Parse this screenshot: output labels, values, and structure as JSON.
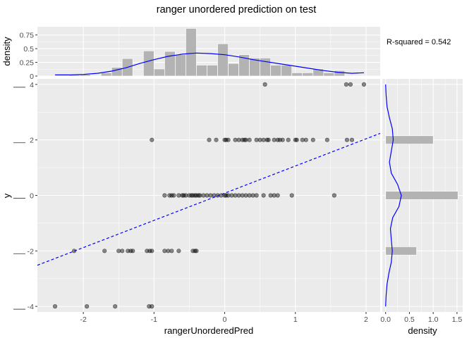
{
  "title": "ranger unordered prediction on test",
  "annotation": "R-squared =  0.542",
  "main": {
    "xlabel": "rangerUnorderedPred",
    "ylabel": "y",
    "xlim": [
      -2.65,
      2.2
    ],
    "ylim": [
      -4.2,
      4.2
    ],
    "x_ticks": [
      -2,
      -1,
      0,
      1,
      2
    ],
    "x_tick_labels": [
      "-2",
      "-1",
      "0",
      "1",
      "2"
    ],
    "y_ticks": [
      -4,
      -2,
      0,
      2,
      4
    ],
    "y_tick_labels": [
      "-4",
      "-2",
      "0",
      "2",
      "4"
    ]
  },
  "top": {
    "ylabel": "density",
    "ylim": [
      0,
      0.9
    ],
    "y_ticks": [
      0,
      0.25,
      0.5,
      0.75
    ],
    "y_tick_labels": [
      "0",
      "0.25",
      "0.5",
      "0.75"
    ]
  },
  "right": {
    "xlabel": "density",
    "xlim": [
      -0.07,
      1.62
    ],
    "x_ticks": [
      0,
      0.5,
      1,
      1.5
    ],
    "x_tick_labels": [
      "0.0",
      "0.5",
      "1.0",
      "1.5"
    ]
  },
  "colors": {
    "panel_bg": "#ebebeb",
    "grid_major": "#ffffff",
    "point": "#000000",
    "fit_line": "#0000ff",
    "density_line": "#0000ff",
    "bar_fill": "#b3b3b3",
    "bar_stroke": "#ffffff"
  },
  "chart_data": [
    {
      "type": "scatter",
      "name": "main",
      "x": [
        -2.4,
        -1.95,
        -1.55,
        -1.07,
        -1.03,
        -2.13,
        -1.7,
        -1.5,
        -1.45,
        -1.37,
        -1.33,
        -1.3,
        -1.1,
        -1.06,
        -1.03,
        -0.85,
        -0.8,
        -0.75,
        -0.65,
        -0.45,
        -0.42,
        -0.4,
        -0.85,
        -0.78,
        -0.75,
        -0.72,
        -0.65,
        -0.6,
        -0.58,
        -0.55,
        -0.5,
        -0.47,
        -0.45,
        -0.42,
        -0.4,
        -0.37,
        -0.35,
        -0.3,
        -0.25,
        -0.2,
        -0.15,
        -0.1,
        -0.05,
        0.0,
        0.02,
        0.05,
        0.1,
        0.15,
        0.2,
        0.25,
        0.3,
        0.35,
        0.4,
        0.45,
        0.55,
        0.65,
        0.7,
        0.75,
        0.95,
        1.55,
        -1.03,
        -0.22,
        -0.12,
        0.0,
        0.02,
        0.05,
        0.15,
        0.2,
        0.25,
        0.28,
        0.3,
        0.35,
        0.45,
        0.5,
        0.55,
        0.6,
        0.62,
        0.7,
        0.75,
        0.78,
        0.82,
        0.9,
        1.0,
        1.02,
        1.1,
        1.15,
        1.25,
        1.45,
        1.73,
        1.8,
        0.57,
        1.72,
        1.78,
        1.97
      ],
      "y": [
        -4,
        -4,
        -4,
        -4,
        -4,
        -2,
        -2,
        -2,
        -2,
        -2,
        -2,
        -2,
        -2,
        -2,
        -2,
        -2,
        -2,
        -2,
        -2,
        -2,
        -2,
        -2,
        0,
        0,
        0,
        0,
        0,
        0,
        0,
        0,
        0,
        0,
        0,
        0,
        0,
        0,
        0,
        0,
        0,
        0,
        0,
        0,
        0,
        0,
        0,
        0,
        0,
        0,
        0,
        0,
        0,
        0,
        0,
        0,
        0,
        0,
        0,
        0,
        0,
        0,
        2,
        2,
        2,
        2,
        2,
        2,
        2,
        2,
        2,
        2,
        2,
        2,
        2,
        2,
        2,
        2,
        2,
        2,
        2,
        2,
        2,
        2,
        2,
        2,
        2,
        2,
        2,
        2,
        2,
        2,
        4,
        4,
        4,
        4
      ],
      "fit_line": {
        "intercept": 0.08,
        "slope": 0.98
      }
    },
    {
      "type": "bar",
      "name": "x-marginal-histogram",
      "bin_edges": [
        -2.5,
        -2.35,
        -2.2,
        -2.05,
        -1.9,
        -1.75,
        -1.6,
        -1.45,
        -1.3,
        -1.15,
        -1.0,
        -0.85,
        -0.7,
        -0.55,
        -0.4,
        -0.25,
        -0.1,
        0.05,
        0.2,
        0.35,
        0.5,
        0.65,
        0.8,
        0.95,
        1.1,
        1.25,
        1.4,
        1.55,
        1.7,
        1.85,
        2.0
      ],
      "values": [
        0,
        0,
        0.03,
        0.03,
        0,
        0.06,
        0.16,
        0.32,
        0,
        0.46,
        0.13,
        0.45,
        0.39,
        0.87,
        0.2,
        0.2,
        0.59,
        0.23,
        0.39,
        0.33,
        0.33,
        0.2,
        0.2,
        0.06,
        0.06,
        0.13,
        0.06,
        0.1,
        0,
        0
      ],
      "density_x": [
        -2.4,
        -2.2,
        -2.0,
        -1.8,
        -1.6,
        -1.4,
        -1.2,
        -1.0,
        -0.8,
        -0.6,
        -0.4,
        -0.2,
        0.0,
        0.2,
        0.4,
        0.6,
        0.8,
        1.0,
        1.2,
        1.4,
        1.6,
        1.8,
        1.97
      ],
      "density_y": [
        0.02,
        0.02,
        0.03,
        0.05,
        0.09,
        0.15,
        0.23,
        0.3,
        0.36,
        0.4,
        0.42,
        0.41,
        0.39,
        0.35,
        0.3,
        0.26,
        0.22,
        0.18,
        0.14,
        0.1,
        0.07,
        0.05,
        0.06
      ]
    },
    {
      "type": "bar",
      "name": "y-marginal-histogram",
      "orientation": "horizontal",
      "bins": [
        {
          "y0": -2.15,
          "y1": -1.85,
          "value": 0.65
        },
        {
          "y0": -0.15,
          "y1": 0.15,
          "value": 1.52
        },
        {
          "y0": 1.85,
          "y1": 2.15,
          "value": 1.0
        }
      ],
      "density_y": [
        -4,
        -3.6,
        -3.2,
        -2.8,
        -2.4,
        -2.0,
        -1.6,
        -1.2,
        -0.8,
        -0.4,
        0.0,
        0.4,
        0.8,
        1.2,
        1.6,
        2.0,
        2.4,
        2.8,
        3.2,
        3.6,
        4.0
      ],
      "density_x": [
        0.0,
        0.01,
        0.03,
        0.07,
        0.12,
        0.14,
        0.12,
        0.1,
        0.15,
        0.28,
        0.33,
        0.25,
        0.12,
        0.08,
        0.12,
        0.16,
        0.14,
        0.08,
        0.03,
        0.01,
        0.0
      ]
    }
  ]
}
